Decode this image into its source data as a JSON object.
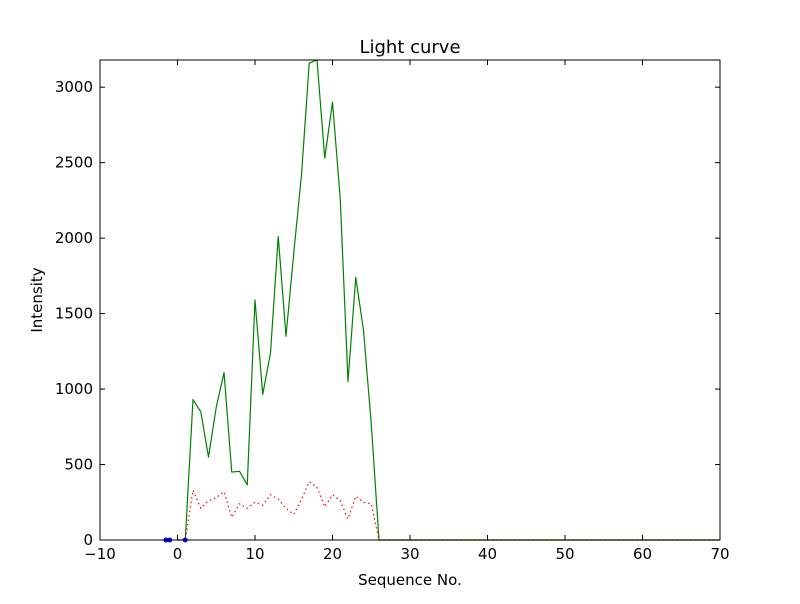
{
  "chart_data": {
    "type": "line",
    "title": "Light curve",
    "xlabel": "Sequence No.",
    "ylabel": "Intensity",
    "xlim": [
      -10,
      70
    ],
    "ylim": [
      0,
      3180
    ],
    "xticks": [
      -10,
      0,
      10,
      20,
      30,
      40,
      50,
      60,
      70
    ],
    "yticks": [
      0,
      500,
      1000,
      1500,
      2000,
      2500,
      3000
    ],
    "xtick_labels": [
      "−10",
      "0",
      "10",
      "20",
      "30",
      "40",
      "50",
      "60",
      "70"
    ],
    "ytick_labels": [
      "0",
      "500",
      "1000",
      "1500",
      "2000",
      "2500",
      "3000"
    ],
    "grid": false,
    "series": [
      {
        "color": "#008000",
        "style": "solid",
        "x": [
          0,
          1,
          2,
          3,
          4,
          5,
          6,
          7,
          8,
          9,
          10,
          11,
          12,
          13,
          14,
          15,
          16,
          17,
          18,
          19,
          20,
          21,
          22,
          23,
          24,
          25,
          26,
          27,
          28,
          29,
          30,
          31,
          32,
          33,
          34,
          35,
          36,
          37,
          38,
          39,
          40,
          41,
          42,
          43,
          44,
          45,
          46,
          47,
          48,
          49,
          50,
          51,
          52,
          53,
          54,
          55,
          56,
          57,
          58,
          59,
          60,
          61,
          62,
          63,
          64,
          65,
          66,
          67,
          68,
          69,
          70
        ],
        "y": [
          0,
          0,
          930,
          850,
          550,
          880,
          1110,
          450,
          455,
          365,
          1590,
          965,
          1240,
          2010,
          1350,
          1900,
          2420,
          3160,
          3180,
          2530,
          2900,
          2260,
          1050,
          1740,
          1390,
          770,
          0,
          0,
          0,
          0,
          0,
          0,
          0,
          0,
          0,
          0,
          0,
          0,
          0,
          0,
          0,
          0,
          0,
          0,
          0,
          0,
          0,
          0,
          0,
          0,
          0,
          0,
          0,
          0,
          0,
          0,
          0,
          0,
          0,
          0,
          0,
          0,
          0,
          0,
          0,
          0,
          0,
          0,
          0,
          0,
          0
        ]
      },
      {
        "color": "#ff0000",
        "style": "dotted",
        "x": [
          0,
          1,
          2,
          3,
          4,
          5,
          6,
          7,
          8,
          9,
          10,
          11,
          12,
          13,
          14,
          15,
          16,
          17,
          18,
          19,
          20,
          21,
          22,
          23,
          24,
          25,
          26,
          27,
          28,
          29,
          30,
          31,
          32,
          33,
          34,
          35,
          36,
          37,
          38,
          39,
          40,
          41,
          42,
          43,
          44,
          45,
          46,
          47,
          48,
          49,
          50,
          51,
          52,
          53,
          54,
          55,
          56,
          57,
          58,
          59,
          60,
          61,
          62,
          63,
          64,
          65,
          66,
          67,
          68,
          69,
          70
        ],
        "y": [
          0,
          0,
          330,
          210,
          260,
          280,
          320,
          150,
          240,
          210,
          250,
          230,
          300,
          270,
          210,
          170,
          270,
          385,
          350,
          220,
          300,
          260,
          140,
          290,
          250,
          240,
          0,
          0,
          0,
          0,
          0,
          0,
          0,
          0,
          0,
          0,
          0,
          0,
          0,
          0,
          0,
          0,
          0,
          0,
          0,
          0,
          0,
          0,
          0,
          0,
          0,
          0,
          0,
          0,
          0,
          0,
          0,
          0,
          0,
          0,
          0,
          0,
          0,
          0,
          0,
          0,
          0,
          0,
          0,
          0,
          0
        ]
      },
      {
        "color": "#bfbf00",
        "style": "solid",
        "x": [
          26,
          70
        ],
        "y": [
          0,
          0
        ]
      },
      {
        "color": "#0000ff",
        "style": "markers",
        "x": [
          -1.5,
          -1.0,
          1.0
        ],
        "y": [
          0,
          0,
          0
        ]
      }
    ]
  }
}
